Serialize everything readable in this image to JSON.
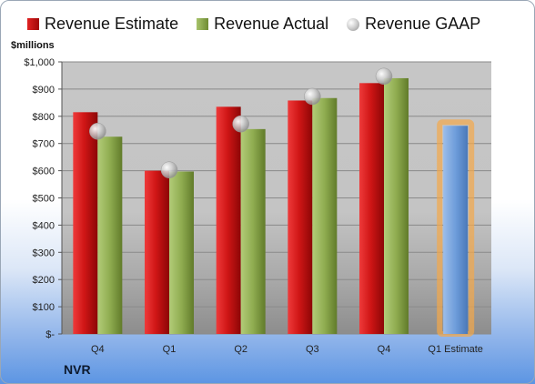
{
  "legend": {
    "estimate": "Revenue Estimate",
    "actual": "Revenue Actual",
    "gaap": "Revenue GAAP"
  },
  "units_label": "$millions",
  "company": "NVR",
  "colors": {
    "estimate": "#c81414",
    "actual": "#8aa84b",
    "gaap": "#b8b8b8",
    "forecast": "#6e9ddb",
    "forecast_glow": "#f3a84a"
  },
  "chart_data": {
    "type": "bar",
    "categories": [
      "Q4",
      "Q1",
      "Q2",
      "Q3",
      "Q4",
      "Q1 Estimate"
    ],
    "series": [
      {
        "name": "Revenue Estimate",
        "values": [
          815,
          600,
          835,
          858,
          922,
          null
        ]
      },
      {
        "name": "Revenue Actual",
        "values": [
          725,
          597,
          753,
          867,
          940,
          765
        ]
      },
      {
        "name": "Revenue GAAP",
        "values": [
          745,
          603,
          772,
          873,
          947,
          null
        ]
      }
    ],
    "ylim": [
      0,
      1000
    ],
    "yticks": [
      0,
      100,
      200,
      300,
      400,
      500,
      600,
      700,
      800,
      900,
      1000
    ],
    "ytick_labels": [
      "$-",
      "$100",
      "$200",
      "$300",
      "$400",
      "$500",
      "$600",
      "$700",
      "$800",
      "$900",
      "$1,000"
    ],
    "grid": true,
    "legend_position": "top"
  }
}
